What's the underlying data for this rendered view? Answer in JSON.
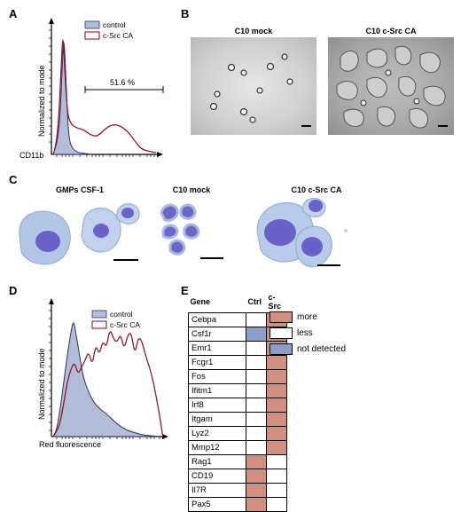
{
  "panels": {
    "a": "A",
    "b": "B",
    "c": "C",
    "d": "D",
    "e": "E"
  },
  "colors": {
    "control_fill": "#b3bdd8",
    "control_line": "#2a3560",
    "csrc_line": "#8b1a2a",
    "more": "#d08f7f",
    "less": "#ffffff",
    "not_detected": "#8c9fc8"
  },
  "panel_a": {
    "chart_data": {
      "type": "area",
      "xlabel": "CD11b",
      "ylabel": "Normalized to mode",
      "x_scale": "log",
      "series": [
        {
          "name": "control",
          "style": "filled"
        },
        {
          "name": "c-Src CA",
          "style": "line"
        }
      ],
      "gate_label": "51.6 %",
      "legend_position": "top-right"
    }
  },
  "panel_b": {
    "images": [
      {
        "title": "C10 mock"
      },
      {
        "title": "C10 c-Src CA"
      }
    ]
  },
  "panel_c": {
    "images": [
      {
        "title": "GMPs CSF-1"
      },
      {
        "title": "C10 mock"
      },
      {
        "title": "C10 c-Src CA"
      }
    ]
  },
  "panel_d": {
    "chart_data": {
      "type": "area",
      "xlabel": "Red fluorescence",
      "ylabel": "Normalized to mode",
      "x_scale": "log",
      "series": [
        {
          "name": "control",
          "style": "filled"
        },
        {
          "name": "c-Src CA",
          "style": "line"
        }
      ],
      "legend_position": "top-right"
    }
  },
  "panel_e": {
    "headers": {
      "gene": "Gene",
      "ctrl": "Ctrl",
      "csrc": "c-Src"
    },
    "rows": [
      {
        "gene": "Cebpa",
        "ctrl": "less",
        "csrc": "more"
      },
      {
        "gene": "Csf1r",
        "ctrl": "not_detected",
        "csrc": "more"
      },
      {
        "gene": "Emr1",
        "ctrl": "less",
        "csrc": "more"
      },
      {
        "gene": "Fcgr1",
        "ctrl": "less",
        "csrc": "more"
      },
      {
        "gene": "Fos",
        "ctrl": "less",
        "csrc": "more"
      },
      {
        "gene": "Ifitm1",
        "ctrl": "less",
        "csrc": "more"
      },
      {
        "gene": "Irf8",
        "ctrl": "less",
        "csrc": "more"
      },
      {
        "gene": "Itgam",
        "ctrl": "less",
        "csrc": "more"
      },
      {
        "gene": "Lyz2",
        "ctrl": "less",
        "csrc": "more"
      },
      {
        "gene": "Mmp12",
        "ctrl": "less",
        "csrc": "more"
      },
      {
        "gene": "Rag1",
        "ctrl": "more",
        "csrc": "less"
      },
      {
        "gene": "CD19",
        "ctrl": "more",
        "csrc": "less"
      },
      {
        "gene": "Il7R",
        "ctrl": "more",
        "csrc": "less"
      },
      {
        "gene": "Pax5",
        "ctrl": "more",
        "csrc": "less"
      }
    ],
    "legend": [
      {
        "key": "more",
        "label": "more"
      },
      {
        "key": "less",
        "label": "less"
      },
      {
        "key": "not_detected",
        "label": "not detected"
      }
    ]
  }
}
